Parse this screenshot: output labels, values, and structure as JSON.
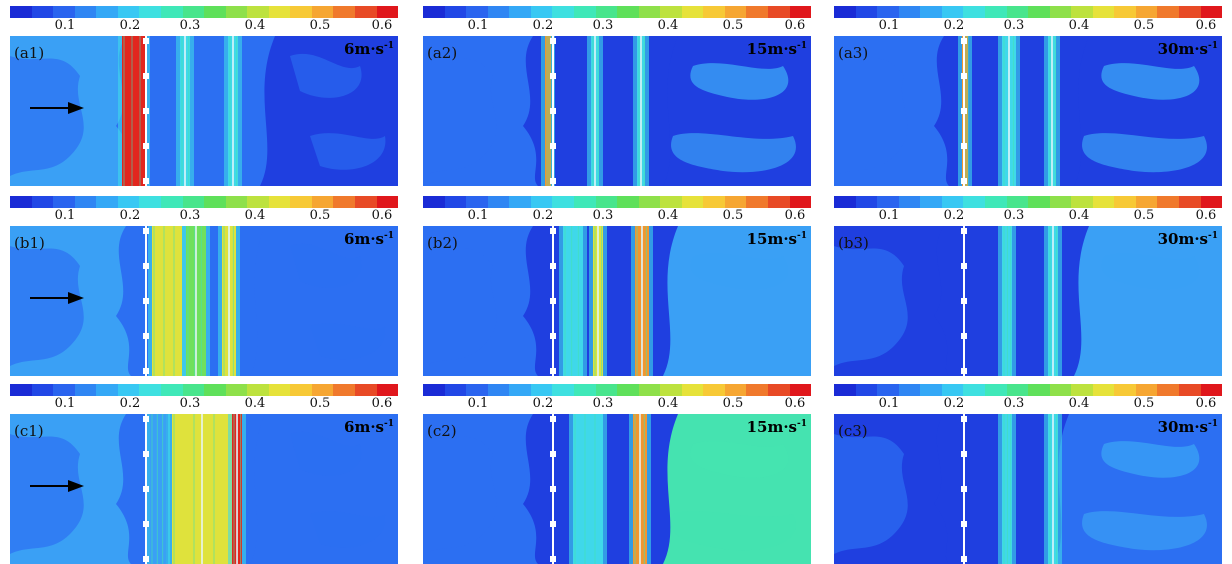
{
  "colorbar": {
    "colors": [
      "#1a2bd6",
      "#2147e6",
      "#2a64ef",
      "#2f86f3",
      "#34a8f6",
      "#38c8f3",
      "#3ee0e0",
      "#3fe8b8",
      "#48e58c",
      "#5fe05a",
      "#8ee04a",
      "#bde23e",
      "#e6e23a",
      "#f7c936",
      "#f6a632",
      "#f0792c",
      "#e84a26",
      "#e0171c"
    ],
    "ticks": [
      "0.1",
      "0.2",
      "0.3",
      "0.4",
      "0.5",
      "0.6"
    ]
  },
  "panels": [
    {
      "label": "(a1)",
      "speed": "6m·s",
      "speed_exp": "-1",
      "arrow": true
    },
    {
      "label": "(a2)",
      "speed": "15m·s",
      "speed_exp": "-1",
      "arrow": false
    },
    {
      "label": "(a3)",
      "speed": "30m·s",
      "speed_exp": "-1",
      "arrow": false
    },
    {
      "label": "(b1)",
      "speed": "6m·s",
      "speed_exp": "-1",
      "arrow": true
    },
    {
      "label": "(b2)",
      "speed": "15m·s",
      "speed_exp": "-1",
      "arrow": false
    },
    {
      "label": "(b3)",
      "speed": "30m·s",
      "speed_exp": "-1",
      "arrow": false
    },
    {
      "label": "(c1)",
      "speed": "6m·s",
      "speed_exp": "-1",
      "arrow": true
    },
    {
      "label": "(c2)",
      "speed": "15m·s",
      "speed_exp": "-1",
      "arrow": false
    },
    {
      "label": "(c3)",
      "speed": "30m·s",
      "speed_exp": "-1",
      "arrow": false
    }
  ]
}
